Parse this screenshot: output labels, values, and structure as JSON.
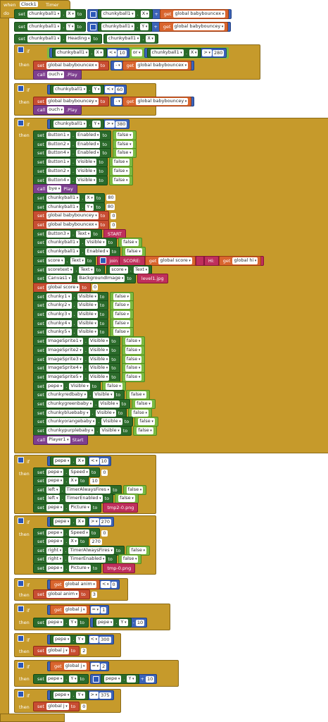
{
  "event": {
    "when": "when",
    "component": "Clock1",
    "event": "Timer",
    "do": "do"
  },
  "top": [
    {
      "set": "set",
      "comp": "chunkyball1",
      "prop": "X",
      "to": "to",
      "op": "+",
      "argComp": "chunkyball1",
      "argProp": "X",
      "get": "get",
      "var": "global babybouncex"
    },
    {
      "set": "set",
      "comp": "chunkyball1",
      "prop": "Y",
      "to": "to",
      "op": "+",
      "argComp": "chunkyball1",
      "argProp": "Y",
      "get": "get",
      "var": "global babybouncey"
    },
    {
      "set": "set",
      "comp": "chunkyball1",
      "prop": "Heading",
      "to": "to",
      "argComp": "chunkyball1",
      "argProp": "X"
    }
  ],
  "if1": {
    "if": "if",
    "then": "then",
    "cond": {
      "a": "chunkyball1",
      "ap": "X",
      "op1": "<",
      "n1": "10",
      "or": "or",
      "b": "chunkyball1",
      "bp": "X",
      "op2": ">",
      "n2": "280"
    },
    "setVar": "global babybouncex",
    "neg": "-",
    "get": "get",
    "getVar": "global babybouncex",
    "call": "call",
    "callComp": "ouch",
    "callMethod": ".Play"
  },
  "if2": {
    "if": "if",
    "then": "then",
    "cond": {
      "a": "chunkyball1",
      "ap": "Y",
      "op": "<",
      "n": "60"
    },
    "setVar": "global babybouncey",
    "neg": "-",
    "get": "get",
    "getVar": "global babybouncey",
    "call": "call",
    "callComp": "ouch",
    "callMethod": ".Play"
  },
  "if3": {
    "if": "if",
    "then": "then",
    "cond": {
      "a": "chunkyball1",
      "ap": "Y",
      "op": ">",
      "n": "380"
    },
    "rows": [
      {
        "t": "setp",
        "c": "Button1",
        "p": "Enabled",
        "v": "false"
      },
      {
        "t": "setp",
        "c": "Button2",
        "p": "Enabled",
        "v": "false"
      },
      {
        "t": "setp",
        "c": "Button4",
        "p": "Enabled",
        "v": "false"
      },
      {
        "t": "setp",
        "c": "Button1",
        "p": "Visible",
        "v": "false"
      },
      {
        "t": "setp",
        "c": "Button2",
        "p": "Visible",
        "v": "false"
      },
      {
        "t": "setp",
        "c": "Button4",
        "p": "Visible",
        "v": "false"
      },
      {
        "t": "call",
        "c": "bye",
        "p": "Play"
      },
      {
        "t": "setn",
        "c": "chunkyball1",
        "p": "X",
        "v": "80"
      },
      {
        "t": "setn",
        "c": "chunkyball1",
        "p": "Y",
        "v": "80"
      },
      {
        "t": "setg",
        "c": "global babybouncey",
        "v": "0"
      },
      {
        "t": "setg",
        "c": "global babybouncex",
        "v": "0"
      },
      {
        "t": "sett",
        "c": "Button3",
        "p": "Text",
        "v": "START"
      },
      {
        "t": "setp",
        "c": "chunkyball1",
        "p": "Visible",
        "v": "false"
      },
      {
        "t": "setp",
        "c": "chunkyball1",
        "p": "Enabled",
        "v": "false"
      },
      {
        "t": "join",
        "c": "score",
        "p": "Text",
        "j": "join",
        "s1": "SCORE: ",
        "g1": "global score",
        "s2": "   ",
        "s3": "Hi: ",
        "g2": "global hi"
      },
      {
        "t": "setc",
        "c": "scoretext",
        "p": "Text",
        "c2": "score",
        "p2": "Text"
      },
      {
        "t": "sett",
        "c": "Canvas1",
        "p": "BackgroundImage",
        "v": "level1.jpg"
      },
      {
        "t": "setg",
        "c": "global score",
        "v": "0"
      },
      {
        "t": "setp",
        "c": "chunky1",
        "p": "Visible",
        "v": "false"
      },
      {
        "t": "setp",
        "c": "chunky2",
        "p": "Visible",
        "v": "false"
      },
      {
        "t": "setp",
        "c": "chunky3",
        "p": "Visible",
        "v": "false"
      },
      {
        "t": "setp",
        "c": "chunky4",
        "p": "Visible",
        "v": "false"
      },
      {
        "t": "setp",
        "c": "chunky5",
        "p": "Visible",
        "v": "false"
      },
      {
        "t": "setp",
        "c": "ImageSprite1",
        "p": "Visible",
        "v": "false"
      },
      {
        "t": "setp",
        "c": "ImageSprite2",
        "p": "Visible",
        "v": "false"
      },
      {
        "t": "setp",
        "c": "ImageSprite3",
        "p": "Visible",
        "v": "false"
      },
      {
        "t": "setp",
        "c": "ImageSprite4",
        "p": "Visible",
        "v": "false"
      },
      {
        "t": "setp",
        "c": "ImageSprite5",
        "p": "Visible",
        "v": "false"
      },
      {
        "t": "setp",
        "c": "pepe",
        "p": "Visible",
        "v": "false"
      },
      {
        "t": "setp",
        "c": "chunkyredbaby",
        "p": "Visible",
        "v": "false"
      },
      {
        "t": "setp",
        "c": "chunkygreenbaby",
        "p": "Visible",
        "v": "false"
      },
      {
        "t": "setp",
        "c": "chunkybluebaby",
        "p": "Visible",
        "v": "false"
      },
      {
        "t": "setp",
        "c": "chunkyorangebaby",
        "p": "Visible",
        "v": "false"
      },
      {
        "t": "setp",
        "c": "chunkypurplebaby",
        "p": "Visible",
        "v": "false"
      },
      {
        "t": "call",
        "c": "Player1",
        "p": "Start"
      }
    ]
  },
  "if4": {
    "if": "if",
    "then": "then",
    "cond": {
      "a": "pepe",
      "ap": "X",
      "op": "<",
      "n": "10"
    },
    "rows": [
      {
        "t": "setn",
        "c": "pepe",
        "p": "Speed",
        "v": "0"
      },
      {
        "t": "setn",
        "c": "pepe",
        "p": "X",
        "v": "10"
      },
      {
        "t": "setp",
        "c": "left",
        "p": "TimerAlwaysFires",
        "v": "false"
      },
      {
        "t": "setp",
        "c": "left",
        "p": "TimerEnabled",
        "v": "false"
      },
      {
        "t": "sett",
        "c": "pepe",
        "p": "Picture",
        "v": "tmp2-0.png"
      }
    ]
  },
  "if5": {
    "if": "if",
    "then": "then",
    "cond": {
      "a": "pepe",
      "ap": "X",
      "op": ">",
      "n": "270"
    },
    "rows": [
      {
        "t": "setn",
        "c": "pepe",
        "p": "Speed",
        "v": "0"
      },
      {
        "t": "setn",
        "c": "pepe",
        "p": "X",
        "v": "270"
      },
      {
        "t": "setp",
        "c": "right",
        "p": "TimerAlwaysFires",
        "v": "false"
      },
      {
        "t": "setp",
        "c": "right",
        "p": "TimerEnabled",
        "v": "false"
      },
      {
        "t": "sett",
        "c": "pepe",
        "p": "Picture",
        "v": "tmp-0.png"
      }
    ]
  },
  "if6": {
    "if": "if",
    "then": "then",
    "get": "get",
    "var": "global anim",
    "op": "<",
    "n": "0",
    "set": "set",
    "setVar": "global anim",
    "to": "to",
    "v": "3"
  },
  "if7": {
    "if": "if",
    "then": "then",
    "get": "get",
    "var": "global j",
    "op": "=",
    "n": "1",
    "set": "set",
    "c": "pepe",
    "p": "Y",
    "to": "to",
    "ac": "pepe",
    "ap": "Y",
    "mop": "-",
    "mv": "10"
  },
  "if8": {
    "if": "if",
    "then": "then",
    "a": "pepe",
    "ap": "Y",
    "op": "<",
    "n": "300",
    "set": "set",
    "setVar": "global j",
    "to": "to",
    "v": "2"
  },
  "if9": {
    "if": "if",
    "then": "then",
    "get": "get",
    "var": "global j",
    "op": "=",
    "n": "2",
    "set": "set",
    "c": "pepe",
    "p": "Y",
    "to": "to",
    "ac": "pepe",
    "ap": "Y",
    "mop": "+",
    "mv": "10"
  },
  "if10": {
    "if": "if",
    "then": "then",
    "a": "pepe",
    "ap": "Y",
    "op": ">",
    "n": "375",
    "set": "set",
    "setVar": "global j",
    "to": "to",
    "v": "0"
  },
  "words": {
    "set": "set",
    "to": "to",
    "get": "get",
    "call": "call"
  }
}
